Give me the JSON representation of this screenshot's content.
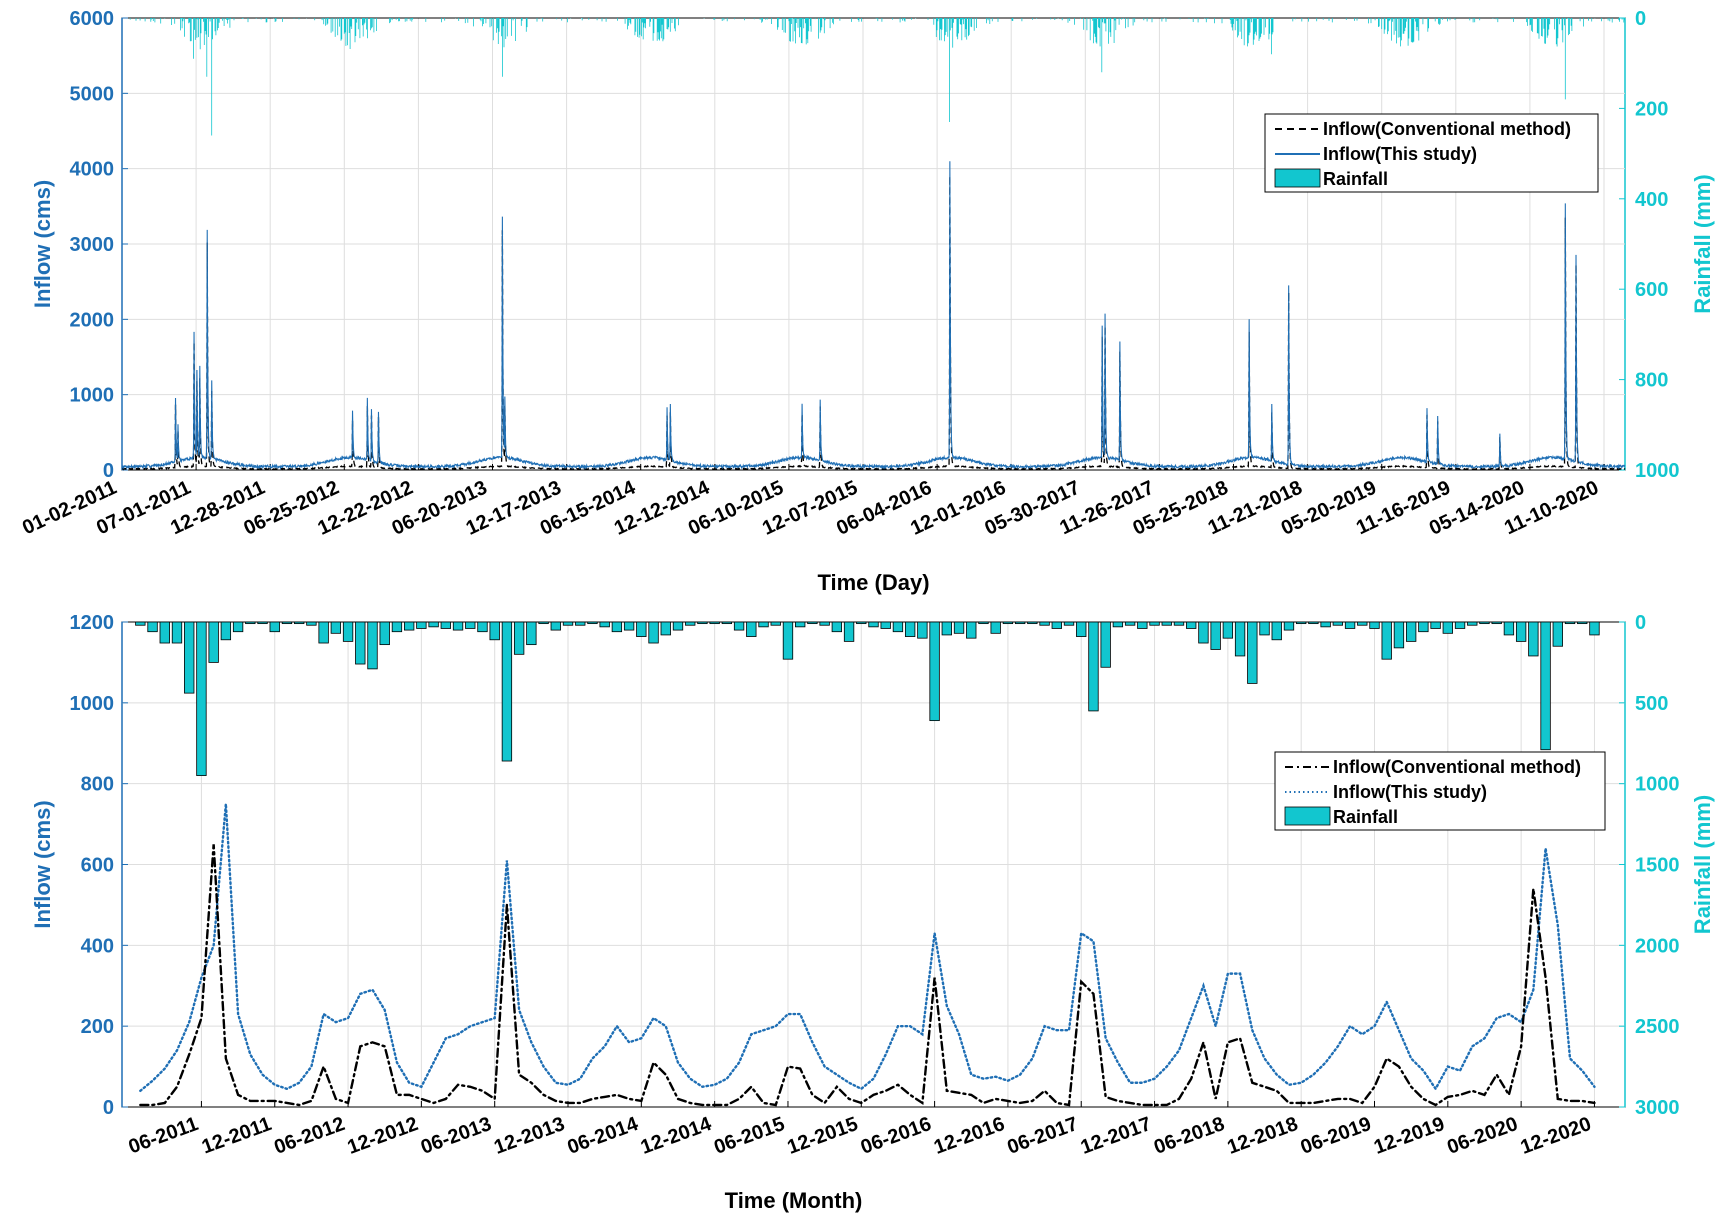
{
  "colors": {
    "inflow_axis": "#1f6fb5",
    "rainfall_axis": "#12c6cf",
    "conventional": "#000000",
    "this_study": "#1f6fb5",
    "rainfall_bar": "#12c6cf",
    "grid": "#dedede"
  },
  "chart_data": [
    {
      "type": "line",
      "subtype": "daily hydrograph with inverted rainfall hyetograph",
      "xlabel": "Time (Day)",
      "ylabel_left": "Inflow (cms)",
      "ylabel_right": "Rainfall (mm)",
      "ylim_left": [
        0,
        6000
      ],
      "ylim_right": [
        0,
        1000
      ],
      "right_axis_inverted": true,
      "yticks_left": [
        "0",
        "1000",
        "2000",
        "3000",
        "4000",
        "5000",
        "6000"
      ],
      "yticks_right": [
        "0",
        "200",
        "400",
        "600",
        "800",
        "1000"
      ],
      "xrange": [
        "01-02-2011",
        "12-31-2020"
      ],
      "x_tick_labels": [
        "01-02-2011",
        "07-01-2011",
        "12-28-2011",
        "06-25-2012",
        "12-22-2012",
        "06-20-2013",
        "12-17-2013",
        "06-15-2014",
        "12-12-2014",
        "06-10-2015",
        "12-07-2015",
        "06-04-2016",
        "12-01-2016",
        "05-30-2017",
        "11-26-2017",
        "05-25-2018",
        "11-21-2018",
        "05-20-2019",
        "11-16-2019",
        "05-14-2020",
        "11-10-2020"
      ],
      "grid": true,
      "legend_position": "upper-right",
      "legend": [
        "Inflow(Conventional method)",
        "Inflow(This study)",
        "Rainfall"
      ],
      "inflow_peaks_this_study": [
        {
          "date": "2011-05-12",
          "value": 850
        },
        {
          "date": "2011-05-18",
          "value": 500
        },
        {
          "date": "2011-06-26",
          "value": 1680
        },
        {
          "date": "2011-07-03",
          "value": 1150
        },
        {
          "date": "2011-07-10",
          "value": 1200
        },
        {
          "date": "2011-07-28",
          "value": 3030
        },
        {
          "date": "2011-08-08",
          "value": 1050
        },
        {
          "date": "2012-07-15",
          "value": 620
        },
        {
          "date": "2012-08-20",
          "value": 820
        },
        {
          "date": "2012-08-30",
          "value": 700
        },
        {
          "date": "2012-09-16",
          "value": 690
        },
        {
          "date": "2013-07-14",
          "value": 3200
        },
        {
          "date": "2013-07-20",
          "value": 820
        },
        {
          "date": "2014-08-18",
          "value": 700
        },
        {
          "date": "2014-08-26",
          "value": 740
        },
        {
          "date": "2015-07-12",
          "value": 720
        },
        {
          "date": "2015-08-25",
          "value": 820
        },
        {
          "date": "2016-07-05",
          "value": 3930
        },
        {
          "date": "2017-07-10",
          "value": 1750
        },
        {
          "date": "2017-07-17",
          "value": 1900
        },
        {
          "date": "2017-08-22",
          "value": 1560
        },
        {
          "date": "2018-07-02",
          "value": 1820
        },
        {
          "date": "2018-08-26",
          "value": 750
        },
        {
          "date": "2018-10-06",
          "value": 2390
        },
        {
          "date": "2019-09-07",
          "value": 710
        },
        {
          "date": "2019-10-03",
          "value": 640
        },
        {
          "date": "2020-03-02",
          "value": 430
        },
        {
          "date": "2020-08-08",
          "value": 3380
        },
        {
          "date": "2020-09-03",
          "value": 2750
        }
      ],
      "rainfall_peaks_daily": [
        {
          "date": "2011-06-26",
          "value": 90
        },
        {
          "date": "2011-07-28",
          "value": 130
        },
        {
          "date": "2011-08-08",
          "value": 260
        },
        {
          "date": "2012-08-20",
          "value": 45
        },
        {
          "date": "2013-07-14",
          "value": 130
        },
        {
          "date": "2016-07-05",
          "value": 230
        },
        {
          "date": "2017-07-10",
          "value": 120
        },
        {
          "date": "2018-08-26",
          "value": 80
        },
        {
          "date": "2020-08-08",
          "value": 180
        }
      ]
    },
    {
      "type": "line",
      "subtype": "monthly hydrograph with inverted rainfall bars",
      "xlabel": "Time (Month)",
      "ylabel_left": "Inflow (cms)",
      "ylabel_right": "Rainfall (mm)",
      "ylim_left": [
        0,
        1200
      ],
      "ylim_right": [
        0,
        3000
      ],
      "right_axis_inverted": true,
      "yticks_left": [
        "0",
        "200",
        "400",
        "600",
        "800",
        "1000",
        "1200"
      ],
      "yticks_right": [
        "0",
        "500",
        "1000",
        "1500",
        "2000",
        "2500",
        "3000"
      ],
      "x_start_month": "2011-01",
      "x_tick_labels": [
        "06-2011",
        "12-2011",
        "06-2012",
        "12-2012",
        "06-2013",
        "12-2013",
        "06-2014",
        "12-2014",
        "06-2015",
        "12-2015",
        "06-2016",
        "12-2016",
        "06-2017",
        "12-2017",
        "06-2018",
        "12-2018",
        "06-2019",
        "12-2019",
        "06-2020",
        "12-2020"
      ],
      "grid": true,
      "legend_position": "upper-right",
      "legend": [
        "Inflow(Conventional method)",
        "Inflow(This study)",
        "Rainfall"
      ],
      "series": [
        {
          "name": "Inflow(Conventional method)",
          "values": [
            5,
            5,
            10,
            50,
            130,
            220,
            650,
            120,
            30,
            15,
            15,
            15,
            10,
            5,
            15,
            100,
            20,
            10,
            150,
            160,
            150,
            30,
            30,
            20,
            10,
            20,
            55,
            50,
            40,
            20,
            500,
            80,
            60,
            30,
            15,
            10,
            10,
            20,
            25,
            30,
            20,
            15,
            110,
            80,
            20,
            10,
            5,
            5,
            5,
            20,
            50,
            10,
            5,
            100,
            95,
            30,
            10,
            50,
            20,
            10,
            30,
            40,
            55,
            30,
            10,
            320,
            40,
            35,
            30,
            10,
            20,
            15,
            10,
            15,
            40,
            10,
            5,
            310,
            280,
            25,
            15,
            10,
            5,
            5,
            5,
            20,
            70,
            160,
            20,
            160,
            170,
            60,
            50,
            40,
            10,
            10,
            10,
            15,
            20,
            20,
            10,
            50,
            120,
            100,
            50,
            20,
            5,
            25,
            30,
            40,
            30,
            80,
            30,
            150,
            540,
            320,
            20,
            15,
            15,
            10
          ]
        },
        {
          "name": "Inflow(This study)",
          "values": [
            40,
            65,
            95,
            140,
            210,
            320,
            400,
            750,
            230,
            130,
            80,
            55,
            45,
            60,
            100,
            230,
            210,
            220,
            280,
            290,
            240,
            110,
            60,
            50,
            110,
            170,
            180,
            200,
            210,
            220,
            610,
            240,
            160,
            100,
            60,
            55,
            70,
            120,
            150,
            200,
            160,
            170,
            220,
            200,
            110,
            70,
            50,
            55,
            70,
            110,
            180,
            190,
            200,
            230,
            230,
            160,
            100,
            80,
            60,
            45,
            70,
            130,
            200,
            200,
            180,
            430,
            250,
            180,
            80,
            70,
            75,
            65,
            80,
            120,
            200,
            190,
            190,
            430,
            410,
            170,
            110,
            60,
            60,
            70,
            100,
            140,
            220,
            300,
            200,
            330,
            330,
            190,
            120,
            80,
            55,
            60,
            80,
            110,
            150,
            200,
            180,
            200,
            260,
            190,
            120,
            90,
            45,
            100,
            90,
            150,
            170,
            220,
            230,
            210,
            290,
            640,
            450,
            120,
            90,
            50
          ]
        },
        {
          "name": "Rainfall",
          "values": [
            20,
            60,
            130,
            130,
            440,
            950,
            250,
            110,
            60,
            10,
            10,
            60,
            10,
            10,
            20,
            130,
            70,
            120,
            260,
            290,
            140,
            60,
            50,
            40,
            30,
            40,
            50,
            40,
            60,
            110,
            860,
            200,
            140,
            10,
            50,
            20,
            20,
            10,
            30,
            60,
            50,
            90,
            130,
            80,
            50,
            20,
            10,
            10,
            10,
            50,
            90,
            30,
            20,
            230,
            30,
            10,
            20,
            60,
            120,
            10,
            30,
            40,
            60,
            90,
            100,
            610,
            80,
            70,
            100,
            10,
            70,
            10,
            10,
            10,
            20,
            40,
            20,
            90,
            550,
            280,
            30,
            20,
            40,
            20,
            20,
            20,
            40,
            130,
            170,
            100,
            210,
            380,
            80,
            110,
            50,
            10,
            10,
            30,
            20,
            40,
            20,
            40,
            230,
            160,
            120,
            60,
            40,
            70,
            40,
            20,
            10,
            10,
            80,
            120,
            210,
            790,
            150,
            10,
            10,
            80
          ]
        }
      ]
    }
  ]
}
